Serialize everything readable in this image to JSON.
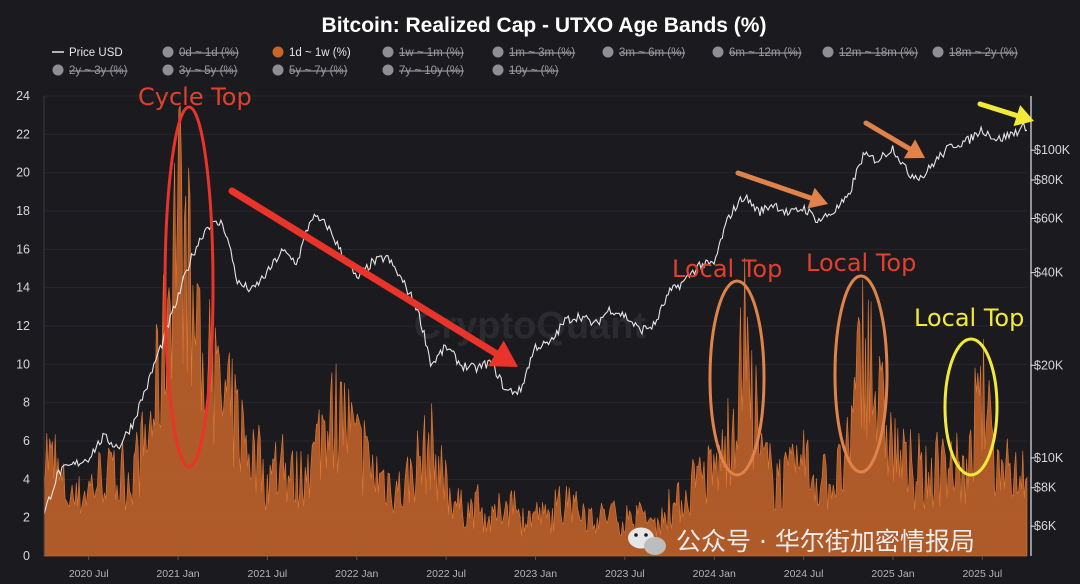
{
  "chart_data": {
    "type": "area",
    "title": "Bitcoin: Realized Cap - UTXO Age Bands (%)",
    "legend": [
      {
        "label": "Price USD",
        "style": "line",
        "color": "#e6e6e6",
        "active": true
      },
      {
        "label": "0d ~ 1d (%)",
        "active": false
      },
      {
        "label": "1d ~ 1w (%)",
        "color": "#c8652b",
        "active": true
      },
      {
        "label": "1w ~ 1m (%)",
        "active": false
      },
      {
        "label": "1m ~ 3m (%)",
        "active": false
      },
      {
        "label": "3m ~ 6m (%)",
        "active": false
      },
      {
        "label": "6m ~ 12m (%)",
        "active": false
      },
      {
        "label": "12m ~ 18m (%)",
        "active": false
      },
      {
        "label": "18m ~ 2y (%)",
        "active": false
      },
      {
        "label": "2y ~ 3y (%)",
        "active": false
      },
      {
        "label": "3y ~ 5y (%)",
        "active": false
      },
      {
        "label": "5y ~ 7y (%)",
        "active": false
      },
      {
        "label": "7y ~ 10y (%)",
        "active": false
      },
      {
        "label": "10y ~ (%)",
        "active": false
      }
    ],
    "x_ticks": [
      "2020 Jul",
      "2021 Jan",
      "2021 Jul",
      "2022 Jan",
      "2022 Jul",
      "2023 Jan",
      "2023 Jul",
      "2024 Jan",
      "2024 Jul",
      "2025 Jan",
      "2025 Jul"
    ],
    "x_range": [
      "2020-04",
      "2025-10"
    ],
    "y_left": {
      "ticks": [
        "0",
        "2",
        "4",
        "6",
        "8",
        "10",
        "12",
        "14",
        "16",
        "18",
        "20",
        "22",
        "24"
      ],
      "range": [
        0,
        24
      ]
    },
    "y_right": {
      "scale": "log",
      "tick_labels": [
        "$6K",
        "$8K",
        "$10K",
        "$20K",
        "$40K",
        "$60K",
        "$80K",
        "$100K"
      ],
      "tick_values": [
        6000,
        8000,
        10000,
        20000,
        40000,
        60000,
        80000,
        100000
      ],
      "range": [
        4800,
        150000
      ]
    },
    "series": [
      {
        "name": "1d ~ 1w (%)",
        "color": "#c8652b",
        "points": [
          [
            "2020-04",
            6.5
          ],
          [
            "2020-05",
            4.5
          ],
          [
            "2020-06",
            3.2
          ],
          [
            "2020-07",
            4.0
          ],
          [
            "2020-08",
            5.0
          ],
          [
            "2020-09",
            4.2
          ],
          [
            "2020-10",
            5.0
          ],
          [
            "2020-11",
            7.0
          ],
          [
            "2020-12",
            12.0
          ],
          [
            "2021-01",
            22.0
          ],
          [
            "2021-02",
            14.0
          ],
          [
            "2021-03",
            11.0
          ],
          [
            "2021-04",
            9.0
          ],
          [
            "2021-05",
            8.0
          ],
          [
            "2021-06",
            6.0
          ],
          [
            "2021-07",
            4.5
          ],
          [
            "2021-08",
            5.0
          ],
          [
            "2021-09",
            4.5
          ],
          [
            "2021-10",
            5.5
          ],
          [
            "2021-11",
            8.5
          ],
          [
            "2021-12",
            8.5
          ],
          [
            "2022-01",
            6.5
          ],
          [
            "2022-02",
            5.0
          ],
          [
            "2022-03",
            4.5
          ],
          [
            "2022-04",
            3.8
          ],
          [
            "2022-05",
            5.5
          ],
          [
            "2022-06",
            6.5
          ],
          [
            "2022-07",
            4.0
          ],
          [
            "2022-08",
            2.8
          ],
          [
            "2022-09",
            2.8
          ],
          [
            "2022-10",
            2.0
          ],
          [
            "2022-11",
            3.2
          ],
          [
            "2022-12",
            2.0
          ],
          [
            "2023-01",
            2.5
          ],
          [
            "2023-02",
            2.2
          ],
          [
            "2023-03",
            3.2
          ],
          [
            "2023-04",
            2.6
          ],
          [
            "2023-05",
            2.2
          ],
          [
            "2023-06",
            2.5
          ],
          [
            "2023-07",
            2.0
          ],
          [
            "2023-08",
            2.2
          ],
          [
            "2023-09",
            1.8
          ],
          [
            "2023-10",
            2.6
          ],
          [
            "2023-11",
            3.5
          ],
          [
            "2023-12",
            4.5
          ],
          [
            "2024-01",
            5.0
          ],
          [
            "2024-02",
            6.5
          ],
          [
            "2024-03",
            12.0
          ],
          [
            "2024-04",
            6.0
          ],
          [
            "2024-05",
            4.5
          ],
          [
            "2024-06",
            4.5
          ],
          [
            "2024-07",
            5.5
          ],
          [
            "2024-08",
            4.5
          ],
          [
            "2024-09",
            4.5
          ],
          [
            "2024-10",
            5.5
          ],
          [
            "2024-11",
            13.0
          ],
          [
            "2024-12",
            9.0
          ],
          [
            "2025-01",
            6.5
          ],
          [
            "2025-02",
            5.0
          ],
          [
            "2025-03",
            4.5
          ],
          [
            "2025-04",
            5.0
          ],
          [
            "2025-05",
            5.5
          ],
          [
            "2025-06",
            4.5
          ],
          [
            "2025-07",
            9.5
          ],
          [
            "2025-08",
            5.0
          ],
          [
            "2025-09",
            5.0
          ],
          [
            "2025-10",
            5.5
          ]
        ]
      },
      {
        "name": "Price USD",
        "color": "#e6e6e6",
        "axis": "right",
        "points": [
          [
            "2020-04",
            6500
          ],
          [
            "2020-05",
            9000
          ],
          [
            "2020-06",
            9500
          ],
          [
            "2020-07",
            10000
          ],
          [
            "2020-08",
            11700
          ],
          [
            "2020-09",
            10800
          ],
          [
            "2020-10",
            13000
          ],
          [
            "2020-11",
            17500
          ],
          [
            "2020-12",
            24000
          ],
          [
            "2021-01",
            33000
          ],
          [
            "2021-02",
            46000
          ],
          [
            "2021-03",
            57000
          ],
          [
            "2021-04",
            58000
          ],
          [
            "2021-05",
            37000
          ],
          [
            "2021-06",
            35000
          ],
          [
            "2021-07",
            40000
          ],
          [
            "2021-08",
            47000
          ],
          [
            "2021-09",
            43000
          ],
          [
            "2021-10",
            61000
          ],
          [
            "2021-11",
            57000
          ],
          [
            "2021-12",
            46000
          ],
          [
            "2022-01",
            38000
          ],
          [
            "2022-02",
            43000
          ],
          [
            "2022-03",
            45000
          ],
          [
            "2022-04",
            38000
          ],
          [
            "2022-05",
            31000
          ],
          [
            "2022-06",
            20000
          ],
          [
            "2022-07",
            23000
          ],
          [
            "2022-08",
            20000
          ],
          [
            "2022-09",
            19500
          ],
          [
            "2022-10",
            20500
          ],
          [
            "2022-11",
            16500
          ],
          [
            "2022-12",
            16500
          ],
          [
            "2023-01",
            23000
          ],
          [
            "2023-02",
            23500
          ],
          [
            "2023-03",
            28000
          ],
          [
            "2023-04",
            29000
          ],
          [
            "2023-05",
            27000
          ],
          [
            "2023-06",
            30500
          ],
          [
            "2023-07",
            29000
          ],
          [
            "2023-08",
            26000
          ],
          [
            "2023-09",
            27000
          ],
          [
            "2023-10",
            34500
          ],
          [
            "2023-11",
            37500
          ],
          [
            "2023-12",
            42500
          ],
          [
            "2024-01",
            42500
          ],
          [
            "2024-02",
            61000
          ],
          [
            "2024-03",
            71000
          ],
          [
            "2024-04",
            63000
          ],
          [
            "2024-05",
            67000
          ],
          [
            "2024-06",
            62000
          ],
          [
            "2024-07",
            65000
          ],
          [
            "2024-08",
            59000
          ],
          [
            "2024-09",
            63000
          ],
          [
            "2024-10",
            70000
          ],
          [
            "2024-11",
            96000
          ],
          [
            "2024-12",
            93000
          ],
          [
            "2025-01",
            102000
          ],
          [
            "2025-02",
            84000
          ],
          [
            "2025-03",
            82000
          ],
          [
            "2025-04",
            94000
          ],
          [
            "2025-05",
            104000
          ],
          [
            "2025-06",
            107000
          ],
          [
            "2025-07",
            117000
          ],
          [
            "2025-08",
            108000
          ],
          [
            "2025-09",
            113000
          ],
          [
            "2025-10",
            120000
          ]
        ]
      }
    ],
    "annotations": [
      {
        "text": "Cycle Top",
        "color": "#e0402e"
      },
      {
        "text": "Local Top",
        "color": "#e0402e"
      },
      {
        "text": "Local Top",
        "color": "#e0402e"
      },
      {
        "text": "Local Top",
        "color": "#f2ea3a"
      }
    ],
    "background_watermark": "CryptoQuant",
    "watermark": "公众号 · 华尔街加密情报局"
  },
  "colors": {
    "background": "#1b1b1f",
    "area": "#c8652b",
    "price": "#e6e6e6",
    "red": "#e8342a",
    "orange": "#e0834a",
    "yellow": "#f2ea3a"
  }
}
